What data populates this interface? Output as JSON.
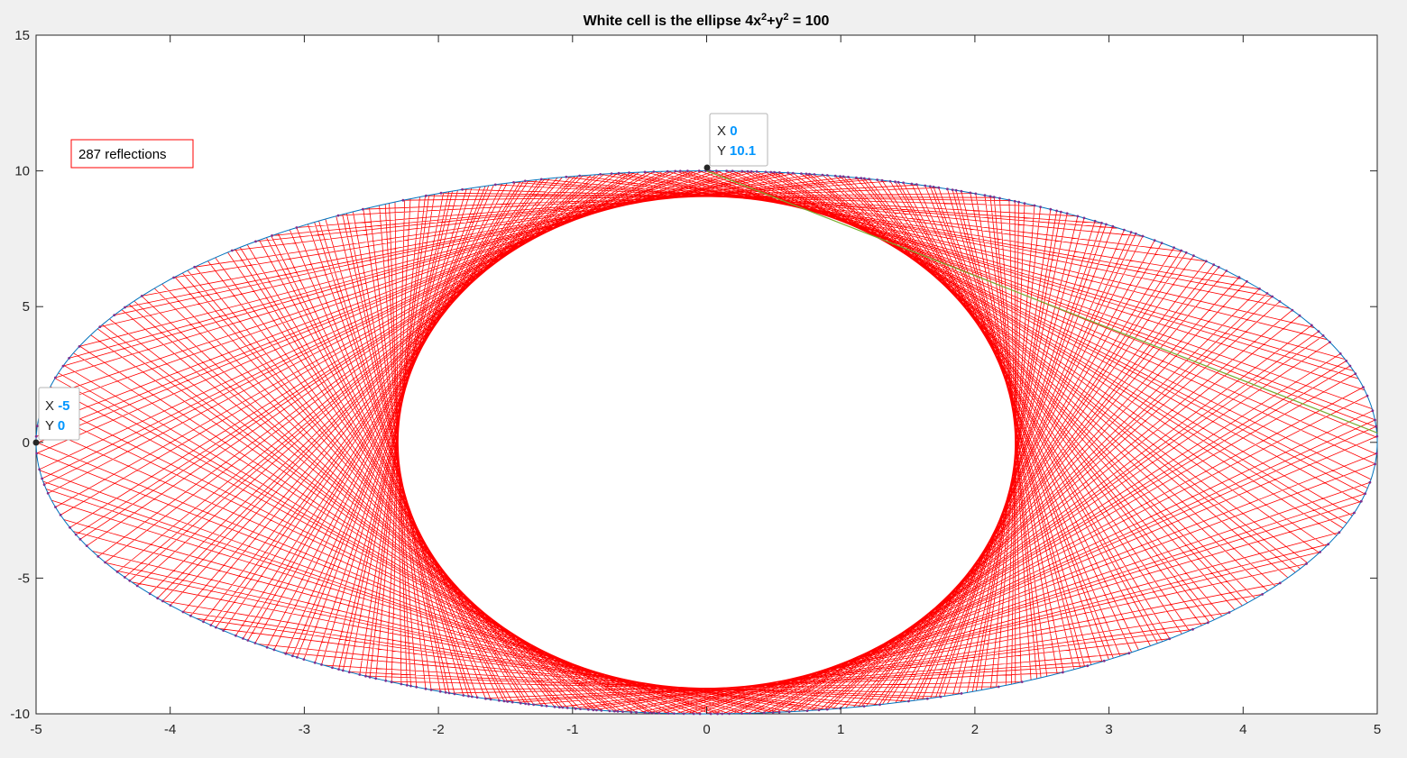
{
  "chart_data": {
    "type": "line",
    "title": "White cell is the ellipse 4x²+y² = 100",
    "title_parts": {
      "a": "White cell is the ellipse 4x",
      "sup1": "2",
      "b": "+y",
      "sup2": "2",
      "c": " = 100"
    },
    "xlabel": "",
    "ylabel": "",
    "xlim": [
      -5,
      5
    ],
    "ylim": [
      -10,
      15
    ],
    "x_ticks": [
      "-5",
      "-4",
      "-3",
      "-2",
      "-1",
      "0",
      "1",
      "2",
      "3",
      "4",
      "5"
    ],
    "y_ticks": [
      "-10",
      "-5",
      "0",
      "5",
      "10",
      "15"
    ],
    "grid": false,
    "ellipse": {
      "a": 5,
      "b": 10
    },
    "reflection_count": 287,
    "caustic": {
      "a": 2.3,
      "b": 9.05
    },
    "colors": {
      "ellipse": "#0072bd",
      "rays": "#ff0000",
      "last_ray": "#77ac30",
      "points": "#7e2f8e",
      "datatip_value": "#0096ff",
      "annotation_border": "#ff0000"
    },
    "annotation": {
      "text": "287 reflections"
    },
    "datatips": [
      {
        "x_label": "X",
        "x_value": "0",
        "y_label": "Y",
        "y_value": "10.1",
        "x": 0,
        "y": 10.1
      },
      {
        "x_label": "X",
        "x_value": "-5",
        "y_label": "Y",
        "y_value": "0",
        "x": -5,
        "y": 0
      }
    ],
    "last_ray_points": [
      [
        0,
        10.0
      ],
      [
        5,
        0.35
      ]
    ]
  }
}
